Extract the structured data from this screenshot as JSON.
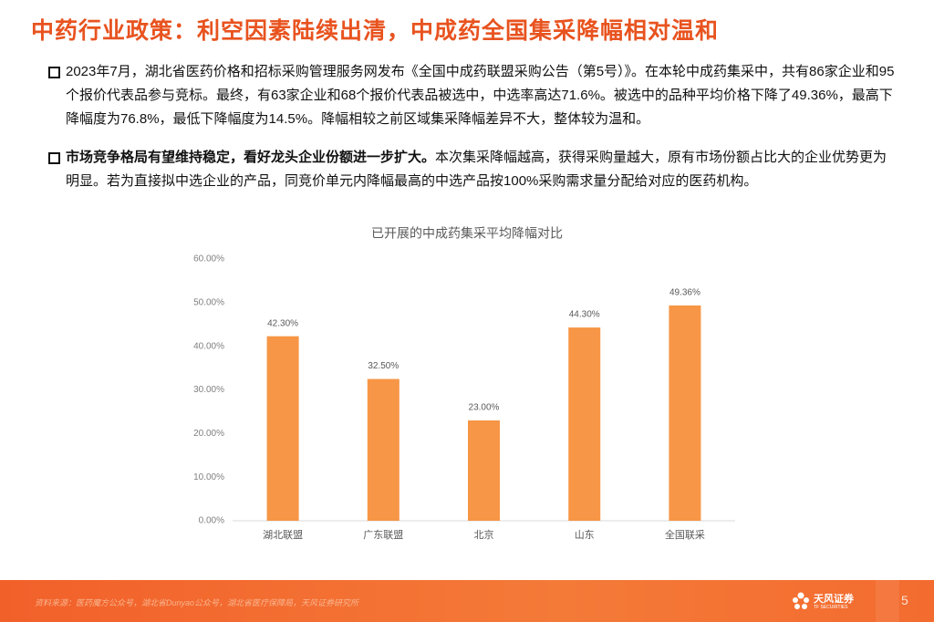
{
  "header": {
    "title": "中药行业政策：利空因素陆续出清，中成药全国集采降幅相对温和"
  },
  "bullets": [
    {
      "text": "2023年7月，湖北省医药价格和招标采购管理服务网发布《全国中成药联盟采购公告（第5号）》。在本轮中成药集采中，共有86家企业和95个报价代表品参与竞标。最终，有63家企业和68个报价代表品被选中，中选率高达71.6%。被选中的品种平均价格下降了49.36%，最高下降幅度为76.8%，最低下降幅度为14.5%。降幅相较之前区域集采降幅差异不大，整体较为温和。"
    },
    {
      "lead": "市场竞争格局有望维持稳定，看好龙头企业份额进一步扩大。",
      "text": "本次集采降幅越高，获得采购量越大，原有市场份额占比大的企业优势更为明显。若为直接拟中选企业的产品，同竞价单元内降幅最高的中选产品按100%采购需求量分配给对应的医药机构。"
    }
  ],
  "chart_data": {
    "type": "bar",
    "title": "已开展的中成药集采平均降幅对比",
    "categories": [
      "湖北联盟",
      "广东联盟",
      "北京",
      "山东",
      "全国联采"
    ],
    "values": [
      42.3,
      32.5,
      23.0,
      44.3,
      49.36
    ],
    "value_labels": [
      "42.30%",
      "32.50%",
      "23.00%",
      "44.30%",
      "49.36%"
    ],
    "color": "#f79646",
    "ylim": [
      0,
      60
    ],
    "yticks": [
      {
        "value": 0,
        "label": "0.00%"
      },
      {
        "value": 10,
        "label": "10.00%"
      },
      {
        "value": 20,
        "label": "20.00%"
      },
      {
        "value": 30,
        "label": "30.00%"
      },
      {
        "value": 40,
        "label": "40.00%"
      },
      {
        "value": 50,
        "label": "50.00%"
      },
      {
        "value": 60,
        "label": "60.00%"
      }
    ],
    "grid": false
  },
  "footer": {
    "source": "资料来源：医药魔方公众号，湖北省Dunyao公众号，湖北省医疗保障局，天风证券研究所",
    "logo": "天风证券",
    "logo_en": "TF SECURITIES",
    "page": "5"
  }
}
